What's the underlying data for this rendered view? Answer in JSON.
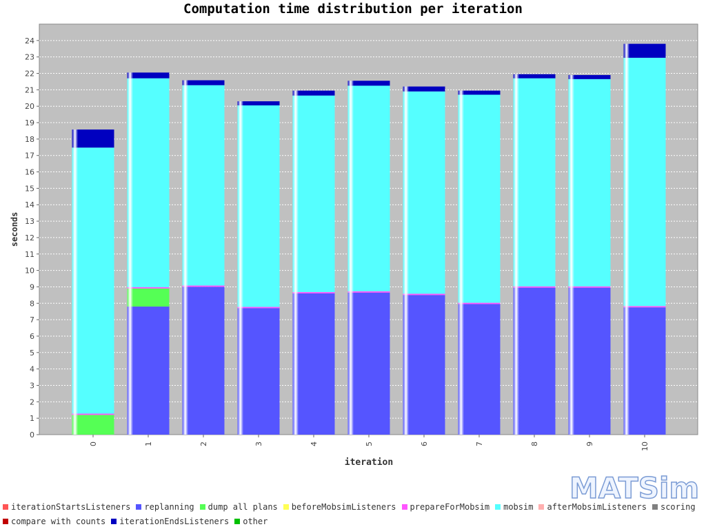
{
  "chart_data": {
    "type": "bar",
    "stacked": true,
    "title": "Computation time distribution per iteration",
    "xlabel": "iteration",
    "ylabel": "seconds",
    "ylim": [
      0,
      25
    ],
    "yticks": [
      0,
      1,
      2,
      3,
      4,
      5,
      6,
      7,
      8,
      9,
      10,
      11,
      12,
      13,
      14,
      15,
      16,
      17,
      18,
      19,
      20,
      21,
      22,
      23,
      24
    ],
    "grid": true,
    "legend_position": "bottom",
    "categories": [
      "0",
      "1",
      "2",
      "3",
      "4",
      "5",
      "6",
      "7",
      "8",
      "9",
      "10"
    ],
    "series": [
      {
        "name": "iterationStartsListeners",
        "color": "#ff5555",
        "values": [
          0,
          0,
          0,
          0,
          0,
          0,
          0,
          0,
          0,
          0,
          0
        ]
      },
      {
        "name": "replanning",
        "color": "#5555ff",
        "values": [
          0,
          7.8,
          9.0,
          7.7,
          8.6,
          8.65,
          8.5,
          7.95,
          8.95,
          8.95,
          7.75
        ]
      },
      {
        "name": "dump all plans",
        "color": "#55ff55",
        "values": [
          1.2,
          1.1,
          0,
          0,
          0,
          0,
          0,
          0,
          0,
          0,
          0
        ]
      },
      {
        "name": "beforeMobsimListeners",
        "color": "#ffff55",
        "values": [
          0,
          0,
          0,
          0,
          0,
          0,
          0,
          0,
          0,
          0,
          0
        ]
      },
      {
        "name": "prepareForMobsim",
        "color": "#ff55ff",
        "values": [
          0.08,
          0.08,
          0.08,
          0.08,
          0.08,
          0.08,
          0.08,
          0.08,
          0.08,
          0.08,
          0.08
        ]
      },
      {
        "name": "mobsim",
        "color": "#55ffff",
        "values": [
          16.2,
          12.72,
          12.2,
          12.27,
          11.97,
          12.52,
          12.32,
          12.67,
          12.67,
          12.62,
          15.12
        ]
      },
      {
        "name": "afterMobsimListeners",
        "color": "#ffafaf",
        "values": [
          0,
          0,
          0,
          0,
          0,
          0,
          0,
          0,
          0,
          0,
          0
        ]
      },
      {
        "name": "scoring",
        "color": "#808080",
        "values": [
          0,
          0,
          0,
          0,
          0,
          0,
          0,
          0,
          0,
          0,
          0
        ]
      },
      {
        "name": "compare with counts",
        "color": "#c00000",
        "values": [
          0,
          0,
          0,
          0,
          0,
          0,
          0,
          0,
          0,
          0,
          0
        ]
      },
      {
        "name": "iterationEndsListeners",
        "color": "#0000c0",
        "values": [
          1.1,
          0.35,
          0.3,
          0.25,
          0.3,
          0.3,
          0.3,
          0.25,
          0.25,
          0.25,
          0.85
        ]
      },
      {
        "name": "other",
        "color": "#00c000",
        "values": [
          0,
          0,
          0,
          0,
          0,
          0,
          0,
          0,
          0,
          0,
          0
        ]
      }
    ]
  },
  "colors": {
    "plot_background": "#c0c0c0",
    "gridline": "#ffffff"
  },
  "logo_text": "MATSim"
}
